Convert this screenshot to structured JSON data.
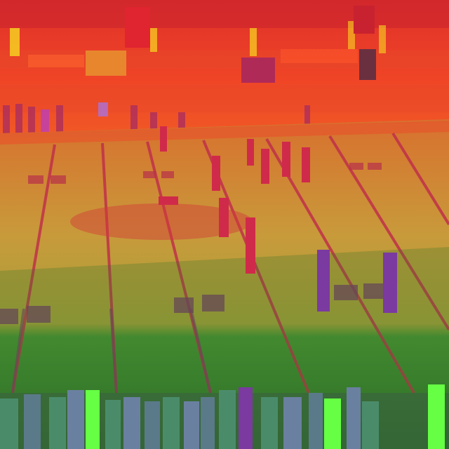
{
  "scene": {
    "subject": "football-field-stadium",
    "filter": "false-color",
    "colors": {
      "crowd": "#e83a2a",
      "crowd_dark": "#b81e2a",
      "stands_band": "#f04a26",
      "sideline": "#e85a2c",
      "field_lit": "#c8a23a",
      "field_warm": "#d4882e",
      "field_shadow": "#3e8a30",
      "field_shadow_dark": "#2c6e28",
      "yard_line": "#c0304a",
      "yard_line_shadow": "#7a3a66",
      "player_red": "#d02a4a",
      "player_purple": "#7a3aa0",
      "sideline_player": "#4a8c6a",
      "sideline_highlight": "#66ff44",
      "light_glow": "#f8d820"
    }
  }
}
